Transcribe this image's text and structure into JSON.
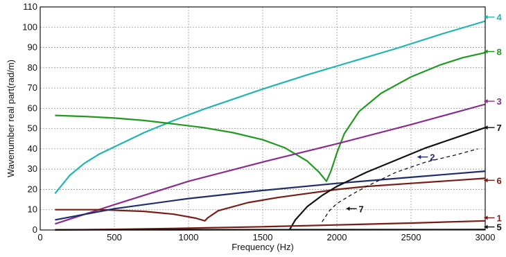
{
  "chart_data": {
    "type": "line",
    "title": "",
    "xlabel": "Frequency (Hz)",
    "ylabel": "Wavenumber real part(rad/m)",
    "xlim": [
      0,
      3000
    ],
    "ylim": [
      0,
      110
    ],
    "x_ticks": [
      0,
      500,
      1000,
      1500,
      2000,
      2500,
      3000
    ],
    "y_ticks": [
      0,
      10,
      20,
      30,
      40,
      50,
      60,
      70,
      80,
      90,
      100,
      110
    ],
    "grid": true,
    "colors": {
      "cyan": "#1fb5b0",
      "green": "#1f9a1f",
      "purple": "#8a2c8f",
      "darkred": "#7a1c14",
      "navy": "#1f2d6b",
      "black": "#111111"
    },
    "series": [
      {
        "name": "4",
        "color": "#1fb5b0",
        "x": [
          100,
          200,
          300,
          400,
          500,
          700,
          900,
          1100,
          1300,
          1500,
          1800,
          2100,
          2400,
          2700,
          3000
        ],
        "y": [
          18,
          27,
          33,
          37.5,
          41,
          48,
          54,
          59.5,
          64.5,
          69.5,
          76.5,
          83,
          89.5,
          96.5,
          103
        ]
      },
      {
        "name": "8",
        "color": "#1f9a1f",
        "x": [
          100,
          300,
          500,
          700,
          900,
          1100,
          1300,
          1500,
          1650,
          1800,
          1880,
          1930,
          1960,
          2000,
          2050,
          2150,
          2300,
          2500,
          2700,
          2850,
          3000
        ],
        "y": [
          56.5,
          56,
          55.2,
          54,
          52.3,
          50.5,
          48,
          44.5,
          40.5,
          34,
          28.5,
          24,
          29,
          38,
          47.5,
          58.5,
          67.5,
          75.5,
          81.5,
          85,
          87.5
        ]
      },
      {
        "name": "3",
        "color": "#8a2c8f",
        "x": [
          100,
          500,
          1000,
          1500,
          2000,
          2500,
          3000
        ],
        "y": [
          3,
          12.5,
          24,
          33.5,
          42.5,
          52,
          62
        ]
      },
      {
        "name": "6",
        "color": "#7a1c14",
        "x": [
          100,
          400,
          700,
          900,
          1050,
          1110,
          1130,
          1200,
          1400,
          1600,
          1800,
          2000,
          2200,
          2500,
          2800,
          3000
        ],
        "y": [
          10,
          10,
          9.2,
          7.8,
          5.8,
          4.5,
          6,
          9.5,
          13.5,
          16,
          18,
          20,
          21.5,
          23,
          24.5,
          25.5
        ]
      },
      {
        "name": "2",
        "color": "#1f2d6b",
        "x": [
          100,
          500,
          1000,
          1500,
          2000,
          2500,
          3000
        ],
        "y": [
          5,
          10.5,
          15.5,
          19.5,
          23,
          26,
          29
        ]
      },
      {
        "name": "7",
        "color": "#111111",
        "x": [
          1680,
          1720,
          1800,
          1900,
          2000,
          2200,
          2400,
          2600,
          2800,
          3000
        ],
        "y": [
          0,
          5,
          11.5,
          17,
          21.5,
          28.5,
          34.5,
          40.5,
          45.5,
          50.5
        ]
      },
      {
        "name": "7",
        "color": "#111111",
        "dashed": true,
        "x": [
          1900,
          1950,
          2000,
          2100,
          2200,
          2400,
          2600,
          2800,
          2950
        ],
        "y": [
          4,
          9.5,
          13,
          17.5,
          21.5,
          28.5,
          33.5,
          37,
          40
        ]
      },
      {
        "name": "1",
        "color": "#7a1c14",
        "x": [
          100,
          500,
          1000,
          1500,
          2000,
          2500,
          3000
        ],
        "y": [
          0,
          0.3,
          0.9,
          1.6,
          2.5,
          3.4,
          4.5
        ]
      },
      {
        "name": "5",
        "color": "#111111",
        "x": [
          100,
          3000
        ],
        "y": [
          0.1,
          0.2
        ]
      }
    ],
    "labels": [
      {
        "text": "4",
        "at": [
          3040,
          105
        ],
        "color": "#1fb5b0"
      },
      {
        "text": "8",
        "at": [
          3040,
          88
        ],
        "color": "#1f9a1f"
      },
      {
        "text": "3",
        "at": [
          3040,
          63.5
        ],
        "color": "#8a2c8f"
      },
      {
        "text": "7",
        "at": [
          3040,
          50.5
        ],
        "color": "#111111"
      },
      {
        "text": "2",
        "at": [
          2590,
          36
        ],
        "color": "#1f2d6b"
      },
      {
        "text": "6",
        "at": [
          3040,
          24.5
        ],
        "color": "#7a1c14"
      },
      {
        "text": "7",
        "at": [
          2110,
          10.5
        ],
        "color": "#111111"
      },
      {
        "text": "1",
        "at": [
          3040,
          6
        ],
        "color": "#7a1c14"
      },
      {
        "text": "5",
        "at": [
          3040,
          1.5
        ],
        "color": "#111111"
      }
    ]
  }
}
